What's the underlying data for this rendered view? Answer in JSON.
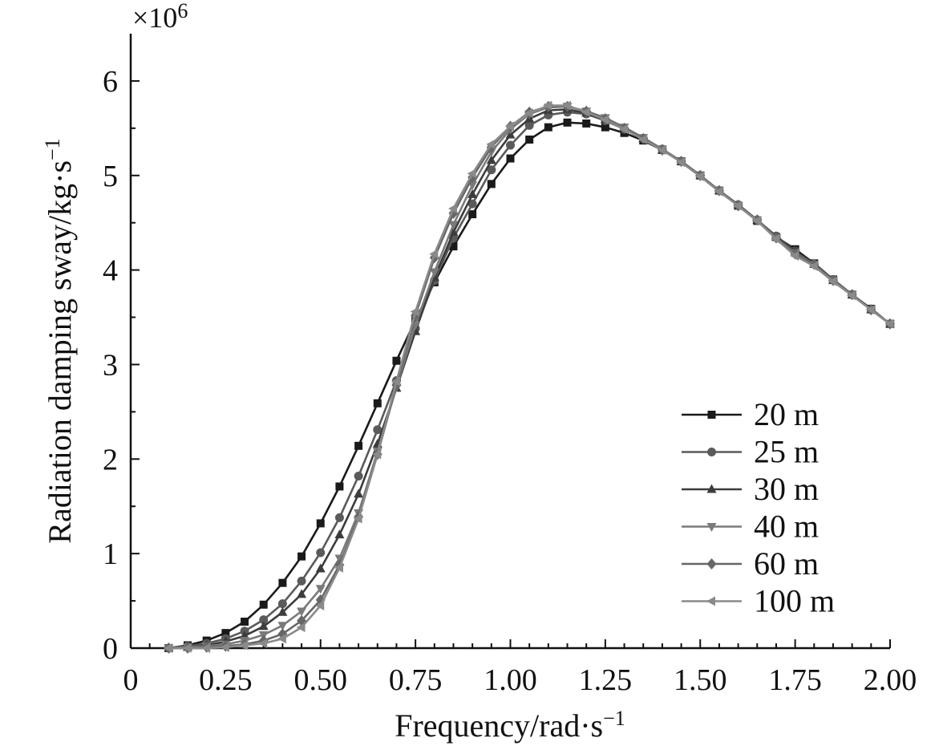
{
  "chart_data": {
    "type": "line",
    "xlabel": "Frequency/rad·s",
    "xlabel_sup": "−1",
    "ylabel": "Radiation damping sway/kg·s",
    "ylabel_sup": "−1",
    "y_multiplier_base": "×10",
    "y_multiplier_exp": "6",
    "xlim": [
      0,
      2.0
    ],
    "ylim": [
      0,
      6.5
    ],
    "x_ticks": [
      0,
      0.25,
      0.5,
      0.75,
      1.0,
      1.25,
      1.5,
      1.75,
      2.0
    ],
    "x_tick_labels": [
      "0",
      "0.25",
      "0.50",
      "0.75",
      "1.00",
      "1.25",
      "1.50",
      "1.75",
      "2.00"
    ],
    "x_minor_ticks": [
      0.05,
      0.1,
      0.15,
      0.2,
      0.3,
      0.35,
      0.4,
      0.45,
      0.55,
      0.6,
      0.65,
      0.7,
      0.8,
      0.85,
      0.9,
      0.95,
      1.05,
      1.1,
      1.15,
      1.2,
      1.3,
      1.35,
      1.4,
      1.45,
      1.55,
      1.6,
      1.65,
      1.7,
      1.8,
      1.85,
      1.9,
      1.95
    ],
    "y_ticks": [
      0,
      1,
      2,
      3,
      4,
      5,
      6
    ],
    "y_tick_labels": [
      "0",
      "1",
      "2",
      "3",
      "4",
      "5",
      "6"
    ],
    "y_minor_ticks": [
      0.5,
      1.5,
      2.5,
      3.5,
      4.5,
      5.5
    ],
    "grid": false,
    "legend_position": "lower-right",
    "x": [
      0.1,
      0.15,
      0.2,
      0.25,
      0.3,
      0.35,
      0.4,
      0.45,
      0.5,
      0.55,
      0.6,
      0.65,
      0.7,
      0.75,
      0.8,
      0.85,
      0.9,
      0.95,
      1.0,
      1.05,
      1.1,
      1.15,
      1.2,
      1.25,
      1.3,
      1.35,
      1.4,
      1.45,
      1.5,
      1.55,
      1.6,
      1.65,
      1.7,
      1.75,
      1.8,
      1.85,
      1.9,
      1.95,
      2.0
    ],
    "series": [
      {
        "name": "20 m",
        "marker": "square",
        "color": "#1a1a1a",
        "values": [
          0.0,
          0.03,
          0.08,
          0.16,
          0.28,
          0.46,
          0.69,
          0.97,
          1.32,
          1.71,
          2.14,
          2.59,
          3.04,
          3.47,
          3.87,
          4.25,
          4.59,
          4.91,
          5.18,
          5.38,
          5.51,
          5.56,
          5.55,
          5.51,
          5.45,
          5.37,
          5.27,
          5.15,
          5.0,
          4.84,
          4.68,
          4.52,
          4.35,
          4.22,
          4.07,
          3.9,
          3.74,
          3.59,
          3.43
        ]
      },
      {
        "name": "25 m",
        "marker": "circle",
        "color": "#5a5a5a",
        "values": [
          0.0,
          0.02,
          0.05,
          0.1,
          0.18,
          0.3,
          0.47,
          0.71,
          1.01,
          1.38,
          1.82,
          2.31,
          2.83,
          3.38,
          3.89,
          4.34,
          4.7,
          5.06,
          5.32,
          5.53,
          5.64,
          5.67,
          5.65,
          5.58,
          5.49,
          5.39,
          5.28,
          5.15,
          5.0,
          4.84,
          4.69,
          4.53,
          4.36,
          4.2,
          4.06,
          3.9,
          3.74,
          3.58,
          3.43
        ]
      },
      {
        "name": "30 m",
        "marker": "triangle-up",
        "color": "#3c3c3c",
        "values": [
          0.0,
          0.01,
          0.03,
          0.07,
          0.13,
          0.23,
          0.38,
          0.57,
          0.84,
          1.2,
          1.63,
          2.16,
          2.75,
          3.35,
          3.92,
          4.4,
          4.8,
          5.16,
          5.43,
          5.6,
          5.69,
          5.7,
          5.66,
          5.59,
          5.5,
          5.39,
          5.27,
          5.15,
          5.0,
          4.84,
          4.69,
          4.53,
          4.35,
          4.2,
          4.06,
          3.89,
          3.74,
          3.58,
          3.43
        ]
      },
      {
        "name": "40 m",
        "marker": "triangle-down",
        "color": "#7a7a7a",
        "values": [
          0.0,
          0.01,
          0.02,
          0.04,
          0.08,
          0.14,
          0.24,
          0.39,
          0.63,
          0.95,
          1.43,
          2.08,
          2.76,
          3.42,
          3.98,
          4.48,
          4.9,
          5.25,
          5.49,
          5.65,
          5.72,
          5.73,
          5.68,
          5.61,
          5.51,
          5.4,
          5.28,
          5.15,
          5.0,
          4.84,
          4.68,
          4.53,
          4.34,
          4.18,
          4.06,
          3.89,
          3.74,
          3.58,
          3.43
        ]
      },
      {
        "name": "60 m",
        "marker": "diamond",
        "color": "#676767",
        "values": [
          0.0,
          0.0,
          0.01,
          0.02,
          0.04,
          0.08,
          0.15,
          0.29,
          0.51,
          0.88,
          1.39,
          2.05,
          2.78,
          3.52,
          4.13,
          4.6,
          4.98,
          5.3,
          5.52,
          5.67,
          5.73,
          5.73,
          5.68,
          5.6,
          5.5,
          5.39,
          5.27,
          5.15,
          5.0,
          4.84,
          4.68,
          4.53,
          4.34,
          4.17,
          4.06,
          3.89,
          3.74,
          3.58,
          3.43
        ]
      },
      {
        "name": "100 m",
        "marker": "triangle-left",
        "color": "#8a8a8a",
        "values": [
          0.0,
          0.0,
          0.0,
          0.01,
          0.03,
          0.05,
          0.1,
          0.22,
          0.45,
          0.85,
          1.37,
          2.05,
          2.82,
          3.56,
          4.17,
          4.65,
          5.02,
          5.33,
          5.52,
          5.66,
          5.74,
          5.74,
          5.67,
          5.59,
          5.49,
          5.38,
          5.27,
          5.14,
          4.99,
          4.83,
          4.68,
          4.52,
          4.33,
          4.15,
          4.04,
          3.88,
          3.73,
          3.58,
          3.43
        ]
      }
    ]
  }
}
